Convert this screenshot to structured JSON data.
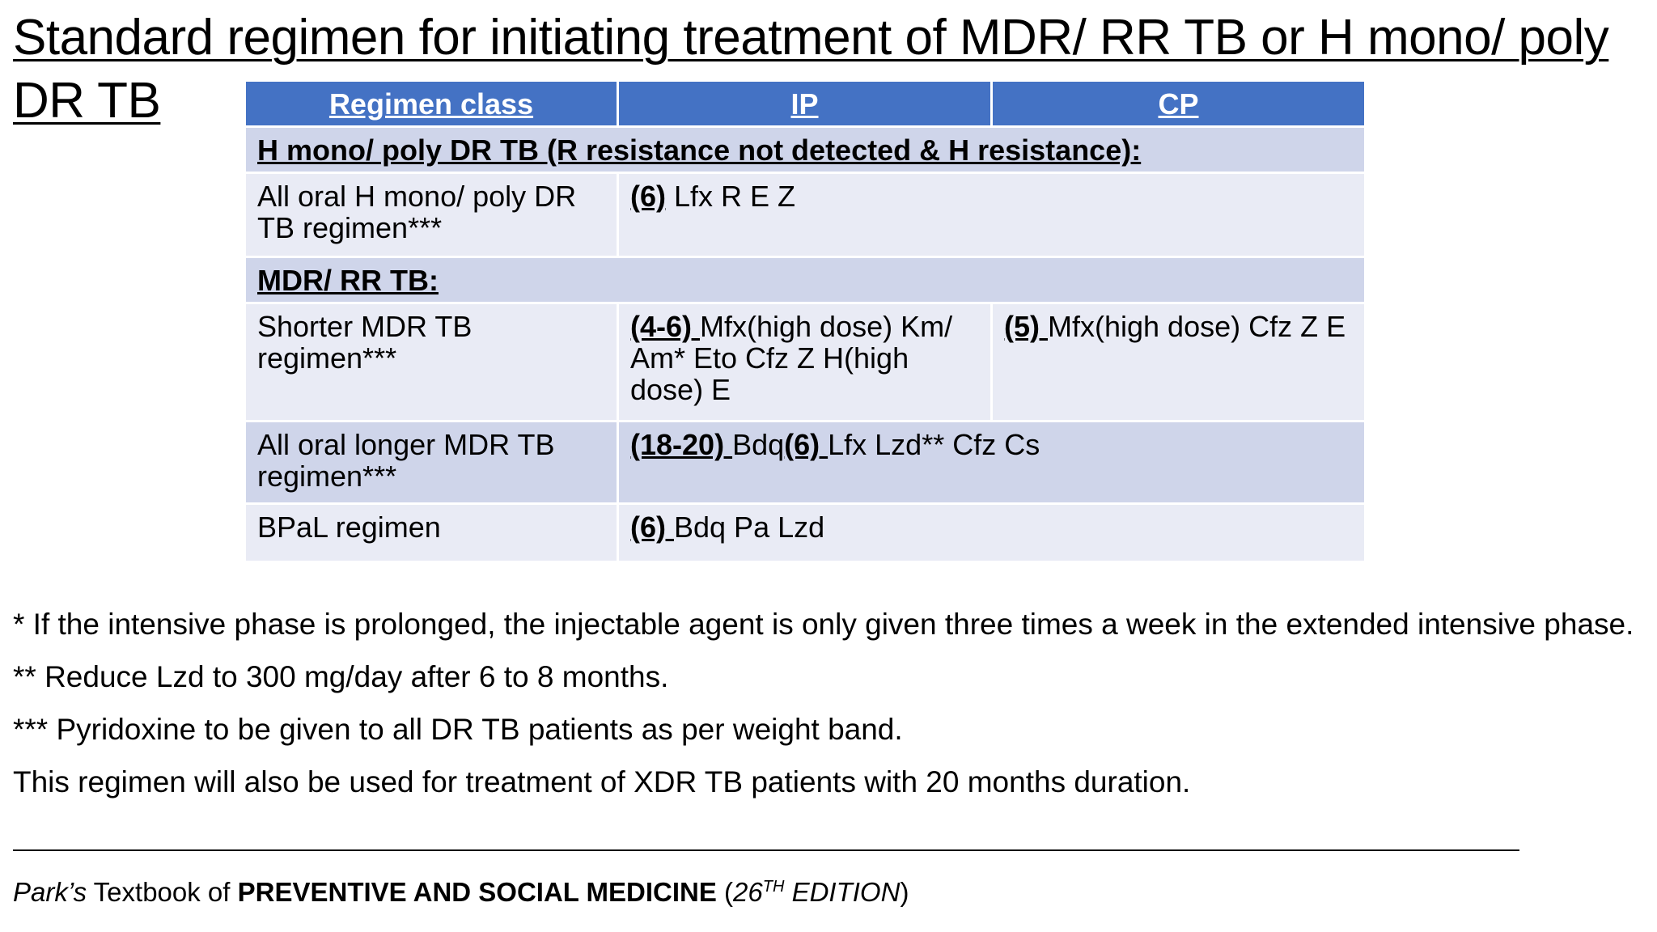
{
  "title": "Standard regimen for initiating treatment of MDR/ RR TB or H mono/ poly DR TB",
  "table": {
    "headers": [
      "Regimen class",
      "IP",
      "CP"
    ],
    "section_h": "H mono/ poly DR TB (R resistance not detected & H resistance):",
    "section_mdr": "MDR/ RR TB:",
    "rows": [
      {
        "name": "All oral H mono/ poly DR TB regimen***",
        "ip_dur": "(6)",
        "ip_text": " Lfx R E Z"
      },
      {
        "name": "Shorter MDR TB regimen***",
        "ip_dur": "(4-6) ",
        "ip_text": "Mfx(high dose) Km/ Am* Eto Cfz Z H(high dose) E",
        "cp_dur": "(5) ",
        "cp_text": "Mfx(high dose) Cfz Z E"
      },
      {
        "name": "All oral longer MDR TB regimen***",
        "ip_dur": "(18-20) ",
        "ip_text": "Bdq",
        "ip_dur2": "(6) ",
        "ip_text2": "Lfx Lzd** Cfz Cs"
      },
      {
        "name": "BPaL regimen",
        "ip_dur": "(6) ",
        "ip_text": "Bdq Pa Lzd"
      }
    ]
  },
  "footnotes": [
    "* If the intensive phase is prolonged, the injectable agent is only given three times a week in the extended intensive phase.",
    "** Reduce Lzd to 300 mg/day after 6 to 8 months.",
    "*** Pyridoxine to be given to all DR TB patients as per weight band.",
    "This regimen will also be used for treatment of XDR TB patients with 20 months duration."
  ],
  "source": {
    "author": "Park’s",
    "text1": " Textbook of ",
    "book": "PREVENTIVE AND SOCIAL MEDICINE",
    "paren_open": " (",
    "edition_num": "26",
    "edition_sup": "TH",
    "edition_word": " EDITION",
    "paren_close": ")"
  },
  "colors": {
    "header_blue": "#4472c4",
    "row_dark": "#cfd5ea",
    "row_light": "#e9ebf5"
  }
}
